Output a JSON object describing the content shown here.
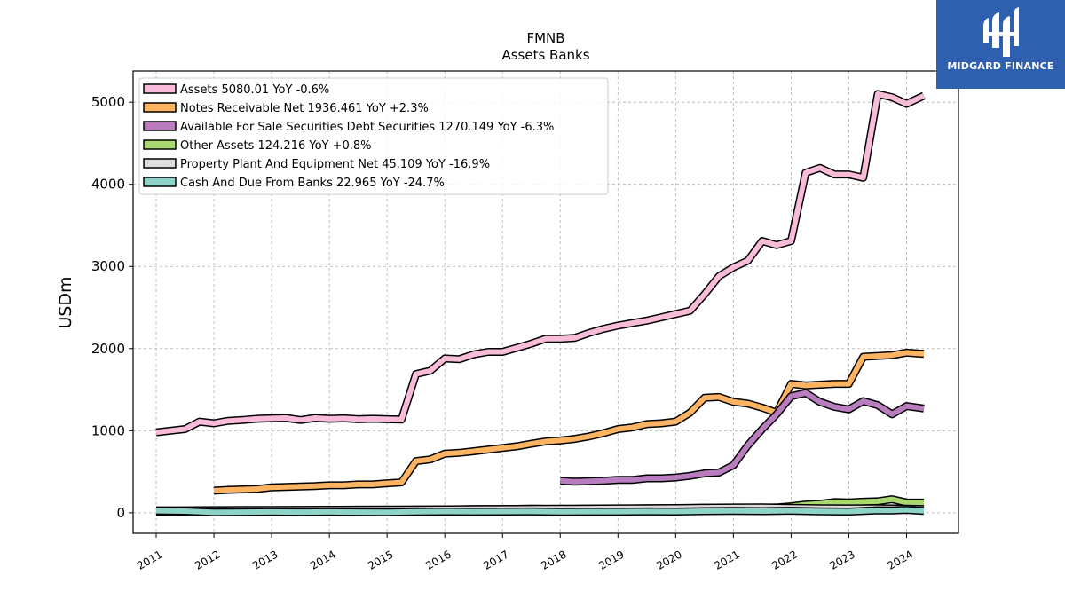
{
  "chart_data": {
    "type": "line",
    "title": "FMNB",
    "subtitle": "Assets Banks",
    "ylabel": "USDm",
    "xlabel": "",
    "xlim": [
      2010.6,
      2024.9
    ],
    "ylim": [
      -250,
      5380
    ],
    "yticks": [
      0,
      1000,
      2000,
      3000,
      4000,
      5000
    ],
    "xticks": [
      "2011",
      "2012",
      "2013",
      "2014",
      "2015",
      "2016",
      "2017",
      "2018",
      "2019",
      "2020",
      "2021",
      "2022",
      "2023",
      "2024"
    ],
    "grid": true,
    "legend_position": "top-left",
    "series": [
      {
        "name": "Assets",
        "legend_label": "Assets  5080.01 YoY -0.6%",
        "color": "#f9bcd8",
        "x": [
          2011.0,
          2011.25,
          2011.5,
          2011.75,
          2012.0,
          2012.25,
          2012.5,
          2012.75,
          2013.0,
          2013.25,
          2013.5,
          2013.75,
          2014.0,
          2014.25,
          2014.5,
          2014.75,
          2015.0,
          2015.25,
          2015.5,
          2015.75,
          2016.0,
          2016.25,
          2016.5,
          2016.75,
          2017.0,
          2017.25,
          2017.5,
          2017.75,
          2018.0,
          2018.25,
          2018.5,
          2018.75,
          2019.0,
          2019.25,
          2019.5,
          2019.75,
          2020.0,
          2020.25,
          2020.5,
          2020.75,
          2021.0,
          2021.25,
          2021.5,
          2021.75,
          2022.0,
          2022.25,
          2022.5,
          2022.75,
          2023.0,
          2023.25,
          2023.5,
          2023.75,
          2024.0,
          2024.3
        ],
        "y": [
          980,
          1000,
          1020,
          1110,
          1090,
          1120,
          1130,
          1145,
          1150,
          1155,
          1130,
          1155,
          1145,
          1150,
          1140,
          1145,
          1140,
          1135,
          1690,
          1730,
          1880,
          1870,
          1930,
          1960,
          1960,
          2010,
          2060,
          2120,
          2120,
          2130,
          2190,
          2240,
          2280,
          2310,
          2340,
          2380,
          2420,
          2460,
          2660,
          2880,
          2990,
          3070,
          3310,
          3260,
          3310,
          4140,
          4200,
          4120,
          4120,
          4080,
          5100,
          5060,
          4980,
          5080
        ]
      },
      {
        "name": "Notes Receivable Net",
        "legend_label": "Notes Receivable Net  1936.461 YoY +2.3%",
        "color": "#fdb462",
        "x": [
          2012.0,
          2012.25,
          2012.5,
          2012.75,
          2013.0,
          2013.25,
          2013.5,
          2013.75,
          2014.0,
          2014.25,
          2014.5,
          2014.75,
          2015.0,
          2015.25,
          2015.5,
          2015.75,
          2016.0,
          2016.25,
          2016.5,
          2016.75,
          2017.0,
          2017.25,
          2017.5,
          2017.75,
          2018.0,
          2018.25,
          2018.5,
          2018.75,
          2019.0,
          2019.25,
          2019.5,
          2019.75,
          2020.0,
          2020.25,
          2020.5,
          2020.75,
          2021.0,
          2021.25,
          2021.5,
          2021.75,
          2022.0,
          2022.25,
          2022.5,
          2022.75,
          2023.0,
          2023.25,
          2023.5,
          2023.75,
          2024.0,
          2024.3
        ],
        "y": [
          270,
          280,
          285,
          290,
          310,
          315,
          320,
          325,
          335,
          335,
          345,
          345,
          360,
          370,
          630,
          650,
          720,
          730,
          750,
          770,
          790,
          810,
          840,
          870,
          880,
          900,
          930,
          970,
          1020,
          1040,
          1080,
          1090,
          1110,
          1220,
          1400,
          1410,
          1350,
          1330,
          1280,
          1220,
          1570,
          1550,
          1560,
          1570,
          1570,
          1900,
          1910,
          1920,
          1950,
          1936
        ]
      },
      {
        "name": "Available For Sale Securities Debt Securities",
        "legend_label": "Available For Sale Securities Debt Securities  1270.149 YoY -6.3%",
        "color": "#b97dbf",
        "x": [
          2018.0,
          2018.25,
          2018.5,
          2018.75,
          2019.0,
          2019.25,
          2019.5,
          2019.75,
          2020.0,
          2020.25,
          2020.5,
          2020.75,
          2021.0,
          2021.25,
          2021.5,
          2021.75,
          2022.0,
          2022.25,
          2022.5,
          2022.75,
          2023.0,
          2023.25,
          2023.5,
          2023.75,
          2024.0,
          2024.3
        ],
        "y": [
          390,
          380,
          385,
          390,
          400,
          400,
          420,
          420,
          430,
          450,
          480,
          490,
          580,
          820,
          1020,
          1200,
          1420,
          1460,
          1350,
          1290,
          1260,
          1360,
          1310,
          1200,
          1300,
          1270
        ]
      },
      {
        "name": "Other Assets",
        "legend_label": "Other Assets  124.216 YoY +0.8%",
        "color": "#a9d86e",
        "x": [
          2011.0,
          2011.5,
          2012.0,
          2012.5,
          2013.0,
          2013.5,
          2014.0,
          2014.5,
          2015.0,
          2015.5,
          2016.0,
          2016.5,
          2017.0,
          2017.5,
          2018.0,
          2018.5,
          2019.0,
          2019.5,
          2020.0,
          2020.5,
          2021.0,
          2021.5,
          2021.75,
          2022.0,
          2022.25,
          2022.5,
          2022.75,
          2023.0,
          2023.25,
          2023.5,
          2023.75,
          2024.0,
          2024.3
        ],
        "y": [
          10,
          15,
          20,
          25,
          25,
          30,
          30,
          35,
          35,
          40,
          40,
          45,
          45,
          50,
          45,
          50,
          50,
          55,
          55,
          60,
          60,
          60,
          65,
          80,
          100,
          110,
          130,
          125,
          135,
          140,
          165,
          125,
          124
        ]
      },
      {
        "name": "Property Plant And Equipment Net",
        "legend_label": "Property Plant And Equipment Net  45.109 YoY -16.9%",
        "color": "#dddddd",
        "x": [
          2011.0,
          2011.5,
          2012.0,
          2012.5,
          2013.0,
          2013.5,
          2014.0,
          2014.5,
          2015.0,
          2015.5,
          2016.0,
          2016.5,
          2017.0,
          2017.5,
          2018.0,
          2018.5,
          2019.0,
          2019.5,
          2020.0,
          2020.5,
          2021.0,
          2021.5,
          2022.0,
          2022.5,
          2023.0,
          2023.5,
          2024.0,
          2024.3
        ],
        "y": [
          30,
          30,
          32,
          33,
          34,
          35,
          36,
          37,
          38,
          40,
          42,
          44,
          46,
          48,
          50,
          52,
          54,
          56,
          58,
          62,
          64,
          66,
          60,
          56,
          54,
          55,
          50,
          45
        ]
      },
      {
        "name": "Cash And Due From Banks",
        "legend_label": "Cash And Due From Banks  22.965 YoY -24.7%",
        "color": "#8dd3c7",
        "x": [
          2011.0,
          2011.5,
          2012.0,
          2012.5,
          2013.0,
          2013.5,
          2014.0,
          2014.5,
          2015.0,
          2015.5,
          2016.0,
          2016.5,
          2017.0,
          2017.5,
          2018.0,
          2018.5,
          2019.0,
          2019.5,
          2020.0,
          2020.5,
          2021.0,
          2021.5,
          2022.0,
          2022.5,
          2023.0,
          2023.5,
          2023.75,
          2024.0,
          2024.3
        ],
        "y": [
          25,
          20,
          5,
          8,
          10,
          8,
          10,
          8,
          6,
          12,
          15,
          14,
          15,
          16,
          12,
          14,
          14,
          16,
          15,
          20,
          22,
          20,
          25,
          18,
          15,
          30,
          28,
          35,
          23
        ]
      }
    ]
  },
  "logo": {
    "text": "MIDGARD FINANCE",
    "background": "#2f5faf"
  }
}
